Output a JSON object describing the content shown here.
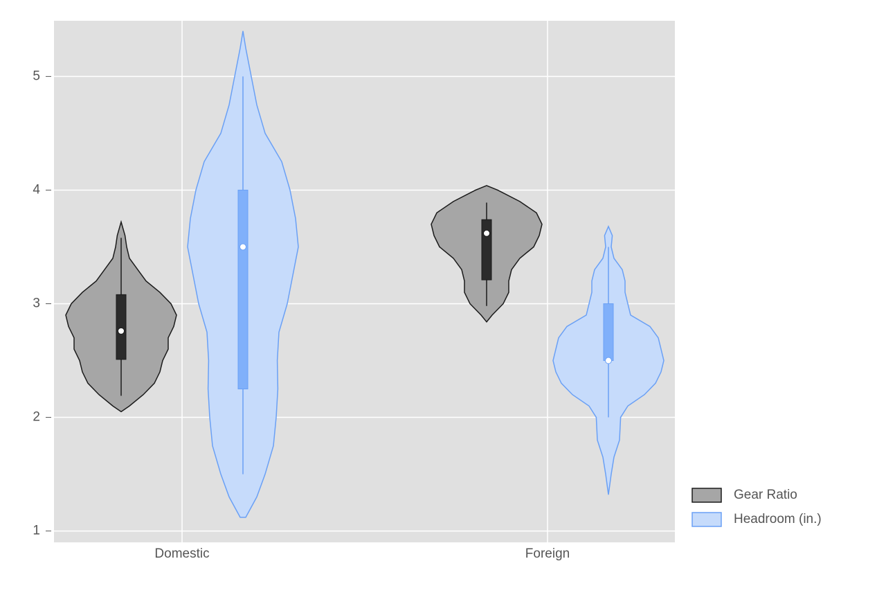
{
  "chart_data": {
    "type": "violin",
    "categories": [
      "Domestic",
      "Foreign"
    ],
    "ylim": [
      0.9,
      5.49
    ],
    "yticks": [
      1,
      2,
      3,
      4,
      5
    ],
    "grid": true,
    "legend": "right",
    "series": [
      {
        "name": "Gear Ratio",
        "color": "#a6a6a6",
        "edge_color": "#1a1a1a",
        "box_color": "#2b2b2b",
        "values": [
          {
            "whisker_low": 2.19,
            "q1": 2.51,
            "median": 2.76,
            "q3": 3.08,
            "whisker_high": 3.58,
            "density": {
              "y": [
                2.05,
                2.1,
                2.2,
                2.3,
                2.4,
                2.5,
                2.6,
                2.7,
                2.8,
                2.9,
                3.0,
                3.1,
                3.2,
                3.3,
                3.4,
                3.5,
                3.6,
                3.72
              ],
              "width": [
                0,
                0.15,
                0.4,
                0.6,
                0.7,
                0.75,
                0.85,
                0.85,
                0.95,
                1.0,
                0.9,
                0.7,
                0.45,
                0.3,
                0.15,
                0.1,
                0.07,
                0
              ]
            }
          },
          {
            "whisker_low": 2.98,
            "q1": 3.21,
            "median": 3.62,
            "q3": 3.74,
            "whisker_high": 3.89,
            "density": {
              "y": [
                2.84,
                2.9,
                3.0,
                3.1,
                3.2,
                3.3,
                3.4,
                3.5,
                3.6,
                3.7,
                3.8,
                3.9,
                4.0,
                4.04
              ],
              "width": [
                0,
                0.1,
                0.3,
                0.4,
                0.4,
                0.45,
                0.6,
                0.85,
                0.95,
                1.0,
                0.9,
                0.6,
                0.2,
                0
              ]
            }
          }
        ]
      },
      {
        "name": "Headroom (in.)",
        "color": "#c6dbfb",
        "edge_color": "#6aa0f5",
        "box_color": "#80b0fa",
        "values": [
          {
            "whisker_low": 1.5,
            "q1": 2.25,
            "median": 3.5,
            "q3": 4.0,
            "whisker_high": 5.0,
            "density": {
              "y": [
                1.12,
                1.3,
                1.5,
                1.75,
                2.0,
                2.25,
                2.5,
                2.75,
                3.0,
                3.25,
                3.5,
                3.75,
                4.0,
                4.25,
                4.5,
                4.75,
                5.0,
                5.25,
                5.4
              ],
              "width": [
                0.05,
                0.25,
                0.4,
                0.55,
                0.6,
                0.63,
                0.62,
                0.65,
                0.8,
                0.9,
                1.0,
                0.95,
                0.85,
                0.7,
                0.4,
                0.25,
                0.15,
                0.05,
                0
              ]
            }
          },
          {
            "whisker_low": 2.0,
            "q1": 2.5,
            "median": 2.5,
            "q3": 3.0,
            "whisker_high": 3.5,
            "density": {
              "y": [
                1.32,
                1.5,
                1.65,
                1.8,
                2.0,
                2.1,
                2.2,
                2.3,
                2.4,
                2.5,
                2.6,
                2.7,
                2.8,
                2.9,
                3.0,
                3.1,
                3.2,
                3.3,
                3.4,
                3.5,
                3.6,
                3.68
              ],
              "width": [
                0,
                0.05,
                0.1,
                0.2,
                0.22,
                0.35,
                0.65,
                0.85,
                0.95,
                1.0,
                0.95,
                0.9,
                0.75,
                0.4,
                0.35,
                0.3,
                0.3,
                0.25,
                0.1,
                0.05,
                0.07,
                0
              ]
            }
          }
        ]
      }
    ]
  }
}
